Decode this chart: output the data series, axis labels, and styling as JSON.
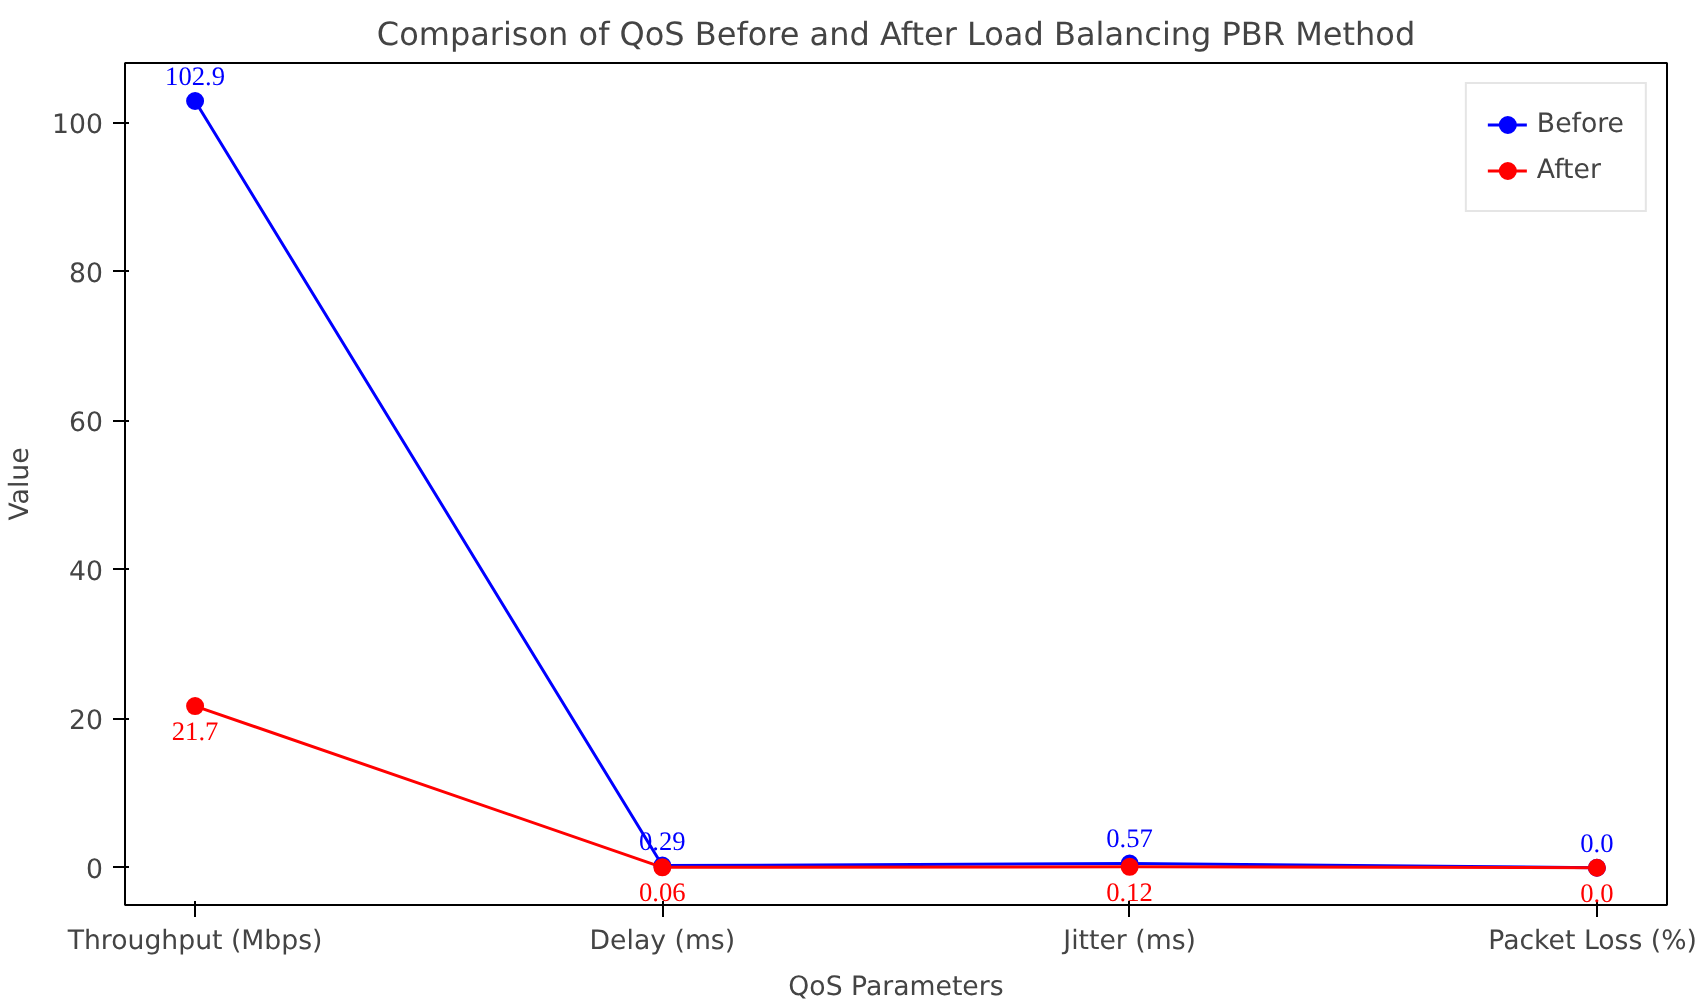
{
  "chart_data": {
    "type": "line",
    "title": "Comparison of QoS Before and After Load Balancing PBR Method",
    "xlabel": "QoS Parameters",
    "ylabel": "Value",
    "categories": [
      "Throughput (Mbps)",
      "Delay (ms)",
      "Jitter (ms)",
      "Packet Loss (%)"
    ],
    "series": [
      {
        "name": "Before",
        "color": "#0000ff",
        "values": [
          102.9,
          0.29,
          0.57,
          0.0
        ],
        "value_labels": [
          "102.9",
          "0.29",
          "0.57",
          "0.0"
        ]
      },
      {
        "name": "After",
        "color": "#ff0000",
        "values": [
          21.7,
          0.06,
          0.12,
          0.0
        ],
        "value_labels": [
          "21.7",
          "0.06",
          "0.12",
          "0.0"
        ]
      }
    ],
    "ylim": [
      -5,
      108
    ],
    "yticks": [
      0,
      20,
      40,
      60,
      80,
      100
    ],
    "grid": false,
    "legend": "top right",
    "marker": "circle",
    "line_style": "solid"
  }
}
